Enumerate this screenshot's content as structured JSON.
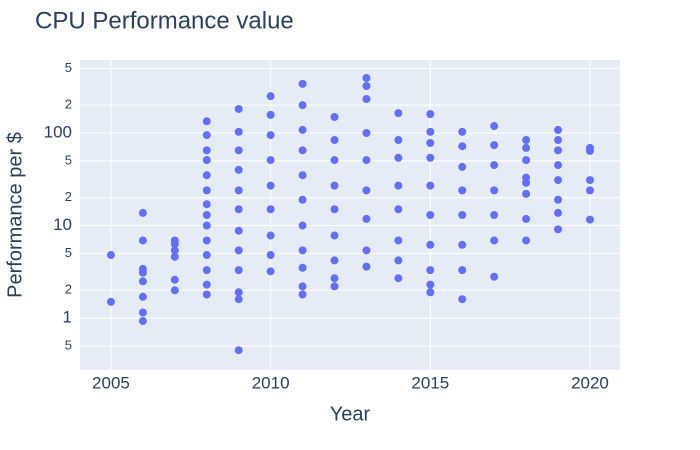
{
  "chart_data": {
    "type": "scatter",
    "title": "CPU Performance value",
    "x_label": "Year",
    "y_label": "Performance per $",
    "color": "#636efa",
    "yscale": "log",
    "grid": true,
    "xlim": [
      2004.03,
      2020.94
    ],
    "xticks": [
      2005,
      2010,
      2015,
      2020
    ],
    "ylim": [
      0.275,
      615
    ],
    "yticks": [
      {
        "value": 0.5,
        "label": "5"
      },
      1,
      {
        "value": 2,
        "label": "2"
      },
      {
        "value": 5,
        "label": "5"
      },
      10,
      {
        "value": 20,
        "label": "2"
      },
      {
        "value": 50,
        "label": "5"
      },
      100,
      {
        "value": 200,
        "label": "2"
      },
      {
        "value": 500,
        "label": "5"
      }
    ],
    "x": [
      2005,
      2005,
      2006,
      2006,
      2006,
      2006,
      2006,
      2006,
      2006,
      2006,
      2007,
      2007,
      2007,
      2007,
      2007,
      2007,
      2008,
      2008,
      2008,
      2008,
      2008,
      2008,
      2008,
      2008,
      2008,
      2008,
      2008,
      2008,
      2008,
      2008,
      2009,
      2009,
      2009,
      2009,
      2009,
      2009,
      2009,
      2009,
      2009,
      2009,
      2009,
      2009,
      2010,
      2010,
      2010,
      2010,
      2010,
      2010,
      2010,
      2010,
      2010,
      2011,
      2011,
      2011,
      2011,
      2011,
      2011,
      2011,
      2011,
      2011,
      2011,
      2011,
      2012,
      2012,
      2012,
      2012,
      2012,
      2012,
      2012,
      2012,
      2012,
      2013,
      2013,
      2013,
      2013,
      2013,
      2013,
      2013,
      2013,
      2013,
      2014,
      2014,
      2014,
      2014,
      2014,
      2014,
      2014,
      2014,
      2015,
      2015,
      2015,
      2015,
      2015,
      2015,
      2015,
      2015,
      2015,
      2015,
      2016,
      2016,
      2016,
      2016,
      2016,
      2016,
      2016,
      2016,
      2017,
      2017,
      2017,
      2017,
      2017,
      2017,
      2017,
      2018,
      2018,
      2018,
      2018,
      2018,
      2018,
      2018,
      2018,
      2019,
      2019,
      2019,
      2019,
      2019,
      2019,
      2019,
      2019,
      2020,
      2020,
      2020,
      2020,
      2020
    ],
    "values": [
      4.8,
      1.5,
      13.7,
      6.9,
      3.4,
      3.1,
      2.5,
      1.7,
      1.15,
      0.93,
      6.9,
      6.3,
      5.4,
      4.6,
      2.6,
      2.0,
      134,
      95,
      65,
      51,
      35,
      24,
      17,
      13,
      10,
      6.9,
      4.8,
      3.3,
      2.3,
      1.8,
      182,
      103,
      65,
      40,
      24,
      15,
      8.8,
      5.4,
      3.3,
      1.9,
      1.6,
      0.45,
      250,
      157,
      95,
      51,
      27,
      15,
      7.8,
      4.8,
      3.2,
      340,
      200,
      108,
      65,
      35,
      19,
      10,
      5.4,
      3.5,
      2.2,
      1.8,
      149,
      84,
      51,
      27,
      15,
      7.8,
      4.2,
      2.7,
      2.2,
      393,
      322,
      233,
      100,
      51,
      24,
      11.8,
      5.4,
      3.6,
      164,
      84,
      54,
      27,
      15,
      6.9,
      4.2,
      2.7,
      160,
      103,
      78,
      54,
      27,
      13,
      6.2,
      3.3,
      2.3,
      1.9,
      103,
      72,
      43,
      24,
      13,
      6.2,
      3.3,
      1.6,
      119,
      74,
      45,
      24,
      13,
      6.9,
      2.8,
      84,
      69,
      51,
      33,
      29,
      22,
      11.8,
      6.9,
      108,
      84,
      65,
      45,
      31,
      19,
      13.7,
      9.1,
      69,
      64,
      31,
      24,
      11.6
    ]
  }
}
